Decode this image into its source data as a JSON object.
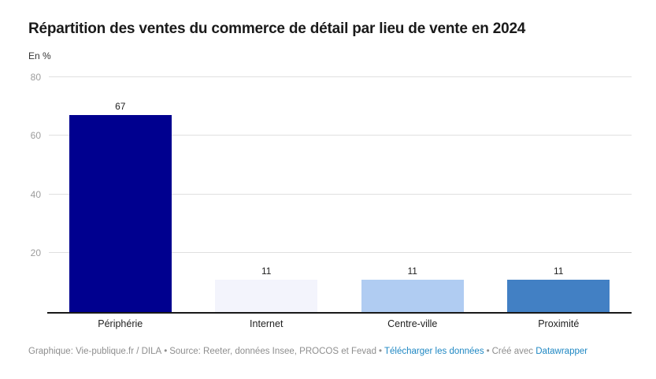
{
  "header": {
    "title": "Répartition des ventes du commerce de détail par lieu de vente en 2024",
    "subtitle": "En %"
  },
  "chart_data": {
    "type": "bar",
    "title": "Répartition des ventes du commerce de détail par lieu de vente en 2024",
    "ylabel": "En %",
    "categories": [
      "Périphérie",
      "Internet",
      "Centre-ville",
      "Proximité"
    ],
    "values": [
      67,
      11,
      11,
      11
    ],
    "bar_colors": [
      "#00008f",
      "#f3f4fc",
      "#b0ccf2",
      "#4280c4"
    ],
    "yticks": [
      20,
      40,
      60,
      80
    ],
    "ylim": [
      0,
      82
    ],
    "grid": true,
    "value_labels": true,
    "legend": "none"
  },
  "colors": {
    "gridline": "#e0e0e0",
    "tick_text": "#9c9c9c",
    "baseline": "#191919",
    "footer_text": "#8e8e8e",
    "link": "#1e87c3"
  },
  "footer": {
    "attribution": "Graphique: Vie-publique.fr / DILA",
    "source": "Source: Reeter, données Insee, PROCOS et Fevad",
    "download_label": "Télécharger les données",
    "created_with": "Créé avec",
    "datawrapper_label": "Datawrapper",
    "separator": "•"
  }
}
